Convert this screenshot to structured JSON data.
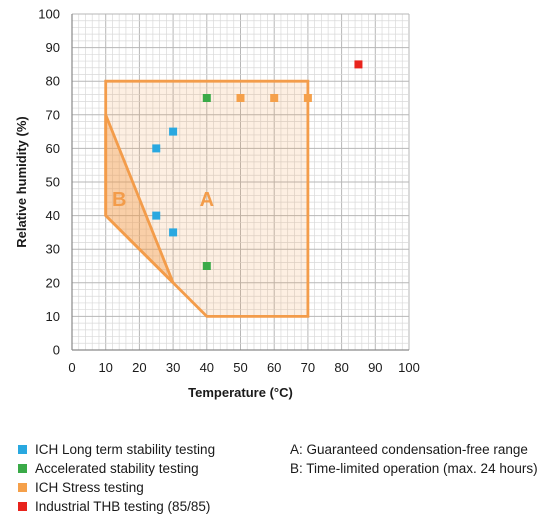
{
  "chart_data": {
    "type": "scatter",
    "xlabel": "Temperature (°C)",
    "ylabel": "Relative humidity (%)",
    "xlim": [
      0,
      100
    ],
    "ylim": [
      0,
      100
    ],
    "x_ticks": [
      "0",
      "10",
      "20",
      "30",
      "40",
      "50",
      "60",
      "70",
      "80",
      "90",
      "100"
    ],
    "y_ticks": [
      "0",
      "10",
      "20",
      "30",
      "40",
      "50",
      "60",
      "70",
      "80",
      "90",
      "100"
    ],
    "grid": true,
    "series": [
      {
        "name": "ICH Long term stability testing",
        "color": "#29a8e0",
        "points": [
          [
            25,
            60
          ],
          [
            30,
            65
          ],
          [
            25,
            40
          ],
          [
            30,
            35
          ]
        ]
      },
      {
        "name": "Accelerated stability testing",
        "color": "#3aaa48",
        "points": [
          [
            40,
            75
          ],
          [
            40,
            25
          ]
        ]
      },
      {
        "name": "ICH Stress testing",
        "color": "#f5a04a",
        "points": [
          [
            50,
            75
          ],
          [
            60,
            75
          ],
          [
            70,
            75
          ]
        ]
      },
      {
        "name": "Industrial THB testing (85/85)",
        "color": "#e8231c",
        "points": [
          [
            85,
            85
          ]
        ]
      }
    ],
    "regions": [
      {
        "label": "A",
        "color": "#f39c4a",
        "polygon": [
          [
            10,
            80
          ],
          [
            70,
            80
          ],
          [
            70,
            10
          ],
          [
            40,
            10
          ],
          [
            30,
            20
          ],
          [
            10,
            40
          ]
        ],
        "label_at": [
          40,
          45
        ]
      },
      {
        "label": "B",
        "color": "#f39c4a",
        "polygon": [
          [
            10,
            70
          ],
          [
            10,
            40
          ],
          [
            30,
            20
          ]
        ],
        "label_at": [
          14,
          45
        ]
      }
    ]
  },
  "notes": [
    "A: Guaranteed condensation-free range",
    "B: Time-limited operation (max. 24 hours)"
  ]
}
